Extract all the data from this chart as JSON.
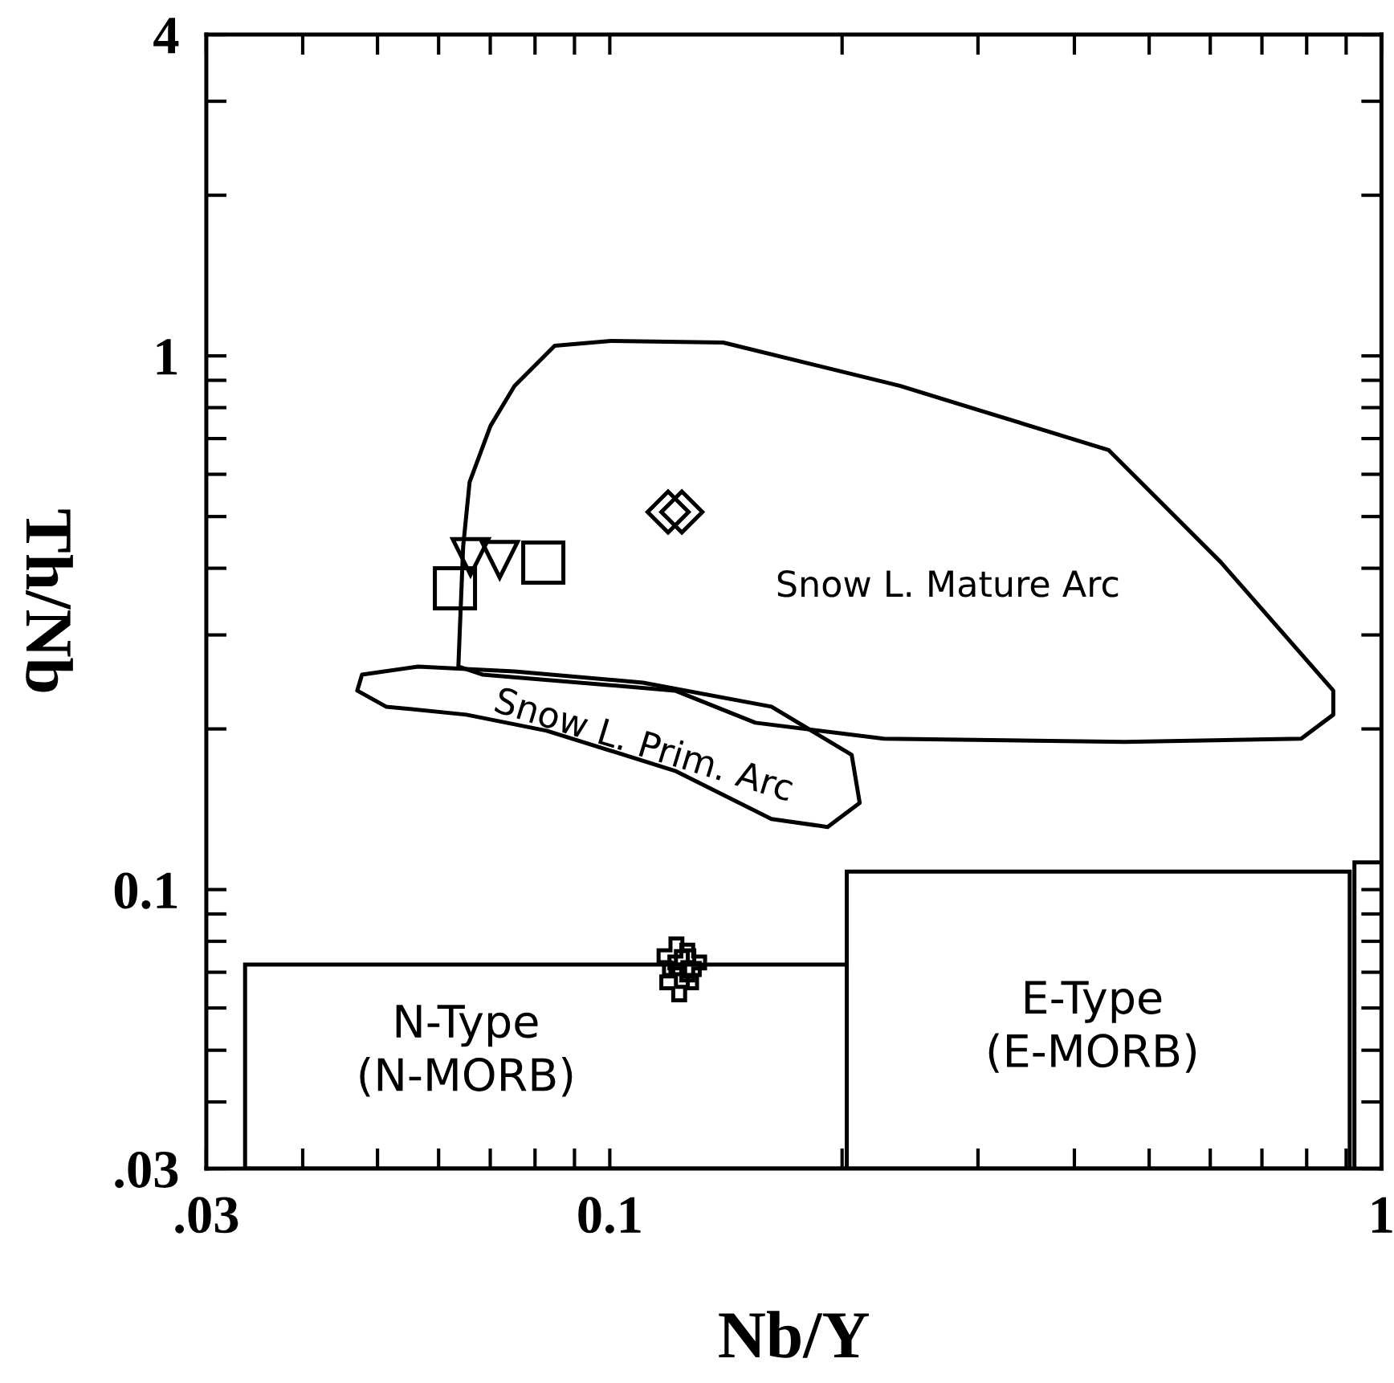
{
  "chart_data": {
    "type": "scatter",
    "xlabel": "Nb/Y",
    "ylabel": "Th/Nb",
    "log": "xy",
    "grid": false,
    "xlim": [
      0.03,
      1
    ],
    "ylim": [
      0.03,
      4
    ],
    "xticks": [
      {
        "value": 0.03,
        "label": ".03"
      },
      {
        "value": 0.04,
        "label": null
      },
      {
        "value": 0.05,
        "label": null
      },
      {
        "value": 0.06,
        "label": null
      },
      {
        "value": 0.07,
        "label": null
      },
      {
        "value": 0.08,
        "label": null
      },
      {
        "value": 0.09,
        "label": null
      },
      0.1,
      {
        "value": 0.2,
        "label": null
      },
      {
        "value": 0.3,
        "label": null
      },
      {
        "value": 0.4,
        "label": null
      },
      {
        "value": 0.5,
        "label": null
      },
      {
        "value": 0.6,
        "label": null
      },
      {
        "value": 0.7,
        "label": null
      },
      {
        "value": 0.8,
        "label": null
      },
      {
        "value": 0.9,
        "label": null
      },
      1
    ],
    "yticks": [
      {
        "value": 0.03,
        "label": ".03"
      },
      {
        "value": 0.04,
        "label": null
      },
      {
        "value": 0.05,
        "label": null
      },
      {
        "value": 0.06,
        "label": null
      },
      {
        "value": 0.07,
        "label": null
      },
      {
        "value": 0.08,
        "label": null
      },
      {
        "value": 0.09,
        "label": null
      },
      0.1,
      {
        "value": 0.2,
        "label": null
      },
      {
        "value": 0.3,
        "label": null
      },
      {
        "value": 0.4,
        "label": null
      },
      {
        "value": 0.5,
        "label": null
      },
      {
        "value": 0.6,
        "label": null
      },
      {
        "value": 0.7,
        "label": null
      },
      {
        "value": 0.8,
        "label": null
      },
      {
        "value": 0.9,
        "label": null
      },
      1,
      {
        "value": 2,
        "label": null
      },
      {
        "value": 3,
        "label": null
      },
      4
    ],
    "series": [
      {
        "color": "#000000",
        "marker": "square",
        "x": [
          0.063,
          0.082
        ],
        "values": [
          0.367,
          0.41
        ]
      },
      {
        "color": "#000000",
        "marker": "triangle",
        "x": [
          0.066,
          0.072
        ],
        "values": [
          0.42,
          0.415
        ]
      },
      {
        "color": "#000000",
        "marker": "diamond",
        "x": [
          0.119,
          0.124
        ],
        "values": [
          0.51,
          0.51
        ]
      },
      {
        "color": "#000000",
        "marker": "cross",
        "x": [
          0.122,
          0.124,
          0.126,
          0.123
        ],
        "values": [
          0.075,
          0.071,
          0.073,
          0.067
        ]
      }
    ],
    "annotations": [
      "Snow L. Mature Arc",
      "Snow L. Prim. Arc",
      "N-Type\n(N-MORB)",
      "E-Type\n(E-MORB)"
    ]
  }
}
